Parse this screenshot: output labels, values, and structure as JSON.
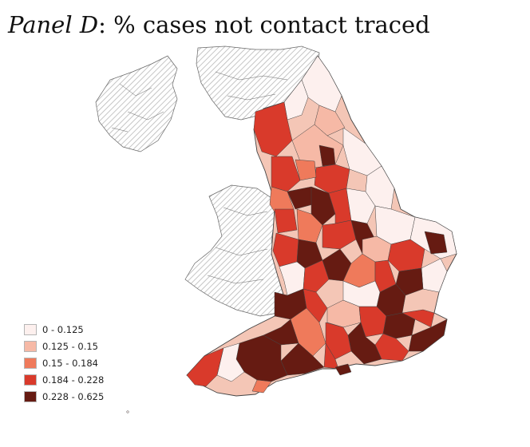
{
  "title": {
    "panel": "Panel D",
    "rest": ": % cases not contact traced"
  },
  "legend": {
    "items": [
      {
        "label": "0 - 0.125",
        "color": "#fdf0ee"
      },
      {
        "label": "0.125 - 0.15",
        "color": "#f6b9a6"
      },
      {
        "label": "0.15 - 0.184",
        "color": "#ef7a5b"
      },
      {
        "label": "0.184 - 0.228",
        "color": "#d93a2b"
      },
      {
        "label": "0.228 - 0.625",
        "color": "#661b12"
      }
    ]
  },
  "map": {
    "hatched_regions": [
      "Scotland",
      "Northern Ireland",
      "Wales"
    ],
    "hatch_color": "#b7b7b7",
    "border_color": "#666666"
  }
}
